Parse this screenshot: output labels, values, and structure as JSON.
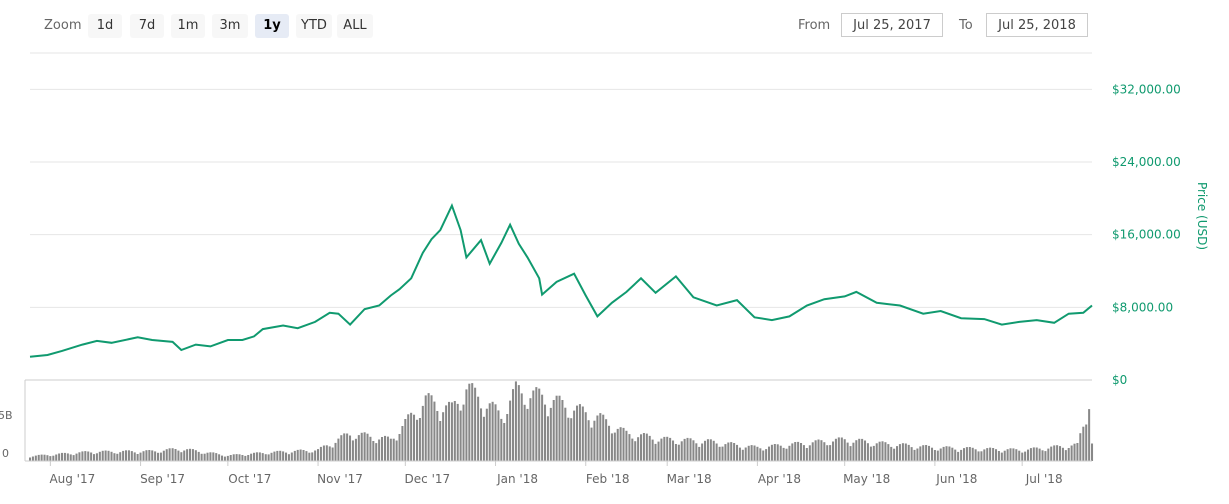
{
  "zoom": {
    "label": "Zoom",
    "buttons": [
      "1d",
      "7d",
      "1m",
      "3m",
      "1y",
      "YTD",
      "ALL"
    ],
    "active": "1y"
  },
  "range": {
    "from_label": "From",
    "from_value": "Jul 25, 2017",
    "to_label": "To",
    "to_value": "Jul 25, 2018"
  },
  "colors": {
    "price_line": "#109a6f",
    "price_axis_text": "#109a6f",
    "volume_bar": "#888888",
    "gridline": "#e6e6e6"
  },
  "chart_data": {
    "type": "line",
    "ylabel": "Price (USD)",
    "y_ticks": [
      "$0",
      "$8,000.00",
      "$16,000.00",
      "$24,000.00",
      "$32,000.00"
    ],
    "ylim": [
      0,
      36000
    ],
    "x_ticks": [
      "Aug '17",
      "Sep '17",
      "Oct '17",
      "Nov '17",
      "Dec '17",
      "Jan '18",
      "Feb '18",
      "Mar '18",
      "Apr '18",
      "May '18",
      "Jun '18",
      "Jul '18"
    ],
    "x_range": [
      "2017-07-25",
      "2018-07-25"
    ],
    "series": [
      {
        "values_description": "Bitcoin price",
        "points": [
          [
            "2017-07-25",
            2550
          ],
          [
            "2017-07-31",
            2750
          ],
          [
            "2017-08-05",
            3200
          ],
          [
            "2017-08-12",
            3900
          ],
          [
            "2017-08-17",
            4300
          ],
          [
            "2017-08-22",
            4100
          ],
          [
            "2017-08-31",
            4700
          ],
          [
            "2017-09-05",
            4400
          ],
          [
            "2017-09-12",
            4200
          ],
          [
            "2017-09-15",
            3300
          ],
          [
            "2017-09-20",
            3900
          ],
          [
            "2017-09-25",
            3700
          ],
          [
            "2017-10-01",
            4400
          ],
          [
            "2017-10-06",
            4400
          ],
          [
            "2017-10-10",
            4800
          ],
          [
            "2017-10-13",
            5600
          ],
          [
            "2017-10-20",
            6000
          ],
          [
            "2017-10-25",
            5700
          ],
          [
            "2017-10-31",
            6400
          ],
          [
            "2017-11-05",
            7400
          ],
          [
            "2017-11-08",
            7300
          ],
          [
            "2017-11-12",
            6100
          ],
          [
            "2017-11-17",
            7800
          ],
          [
            "2017-11-22",
            8200
          ],
          [
            "2017-11-26",
            9300
          ],
          [
            "2017-11-29",
            10000
          ],
          [
            "2017-12-03",
            11200
          ],
          [
            "2017-12-07",
            14000
          ],
          [
            "2017-12-10",
            15500
          ],
          [
            "2017-12-13",
            16500
          ],
          [
            "2017-12-17",
            19200
          ],
          [
            "2017-12-20",
            16500
          ],
          [
            "2017-12-22",
            13500
          ],
          [
            "2017-12-27",
            15400
          ],
          [
            "2017-12-30",
            12800
          ],
          [
            "2018-01-03",
            15100
          ],
          [
            "2018-01-06",
            17100
          ],
          [
            "2018-01-09",
            15000
          ],
          [
            "2018-01-12",
            13500
          ],
          [
            "2018-01-16",
            11200
          ],
          [
            "2018-01-17",
            9400
          ],
          [
            "2018-01-22",
            10800
          ],
          [
            "2018-01-28",
            11700
          ],
          [
            "2018-02-01",
            9300
          ],
          [
            "2018-02-05",
            7000
          ],
          [
            "2018-02-10",
            8500
          ],
          [
            "2018-02-15",
            9700
          ],
          [
            "2018-02-20",
            11200
          ],
          [
            "2018-02-25",
            9600
          ],
          [
            "2018-03-04",
            11400
          ],
          [
            "2018-03-10",
            9100
          ],
          [
            "2018-03-18",
            8200
          ],
          [
            "2018-03-25",
            8800
          ],
          [
            "2018-03-31",
            6900
          ],
          [
            "2018-04-06",
            6600
          ],
          [
            "2018-04-12",
            7000
          ],
          [
            "2018-04-18",
            8200
          ],
          [
            "2018-04-24",
            8900
          ],
          [
            "2018-05-01",
            9200
          ],
          [
            "2018-05-05",
            9700
          ],
          [
            "2018-05-12",
            8500
          ],
          [
            "2018-05-20",
            8200
          ],
          [
            "2018-05-28",
            7300
          ],
          [
            "2018-06-03",
            7600
          ],
          [
            "2018-06-10",
            6800
          ],
          [
            "2018-06-18",
            6700
          ],
          [
            "2018-06-24",
            6100
          ],
          [
            "2018-06-30",
            6400
          ],
          [
            "2018-07-06",
            6600
          ],
          [
            "2018-07-12",
            6300
          ],
          [
            "2018-07-17",
            7300
          ],
          [
            "2018-07-22",
            7400
          ],
          [
            "2018-07-25",
            8200
          ]
        ]
      }
    ],
    "volume": {
      "y_ticks": [
        "0",
        "5B"
      ],
      "description": "Daily trading volume bars",
      "points": [
        [
          "2017-07-25",
          0.8
        ],
        [
          "2017-08-15",
          1.5
        ],
        [
          "2017-09-05",
          1.6
        ],
        [
          "2017-09-15",
          2.0
        ],
        [
          "2017-10-01",
          0.9
        ],
        [
          "2017-10-15",
          1.4
        ],
        [
          "2017-11-01",
          1.8
        ],
        [
          "2017-11-12",
          4.5
        ],
        [
          "2017-11-26",
          3.5
        ],
        [
          "2017-12-08",
          10.0
        ],
        [
          "2017-12-17",
          8.5
        ],
        [
          "2017-12-22",
          12.0
        ],
        [
          "2018-01-03",
          7.5
        ],
        [
          "2018-01-08",
          11.5
        ],
        [
          "2018-01-17",
          10.5
        ],
        [
          "2018-02-06",
          7.0
        ],
        [
          "2018-02-15",
          4.5
        ],
        [
          "2018-03-01",
          3.5
        ],
        [
          "2018-03-15",
          3.2
        ],
        [
          "2018-04-01",
          2.2
        ],
        [
          "2018-04-15",
          2.8
        ],
        [
          "2018-05-01",
          3.5
        ],
        [
          "2018-05-15",
          2.8
        ],
        [
          "2018-06-01",
          2.2
        ],
        [
          "2018-06-15",
          2.0
        ],
        [
          "2018-07-01",
          1.8
        ],
        [
          "2018-07-20",
          2.6
        ],
        [
          "2018-07-24",
          9.0
        ],
        [
          "2018-07-25",
          3.0
        ]
      ]
    }
  }
}
